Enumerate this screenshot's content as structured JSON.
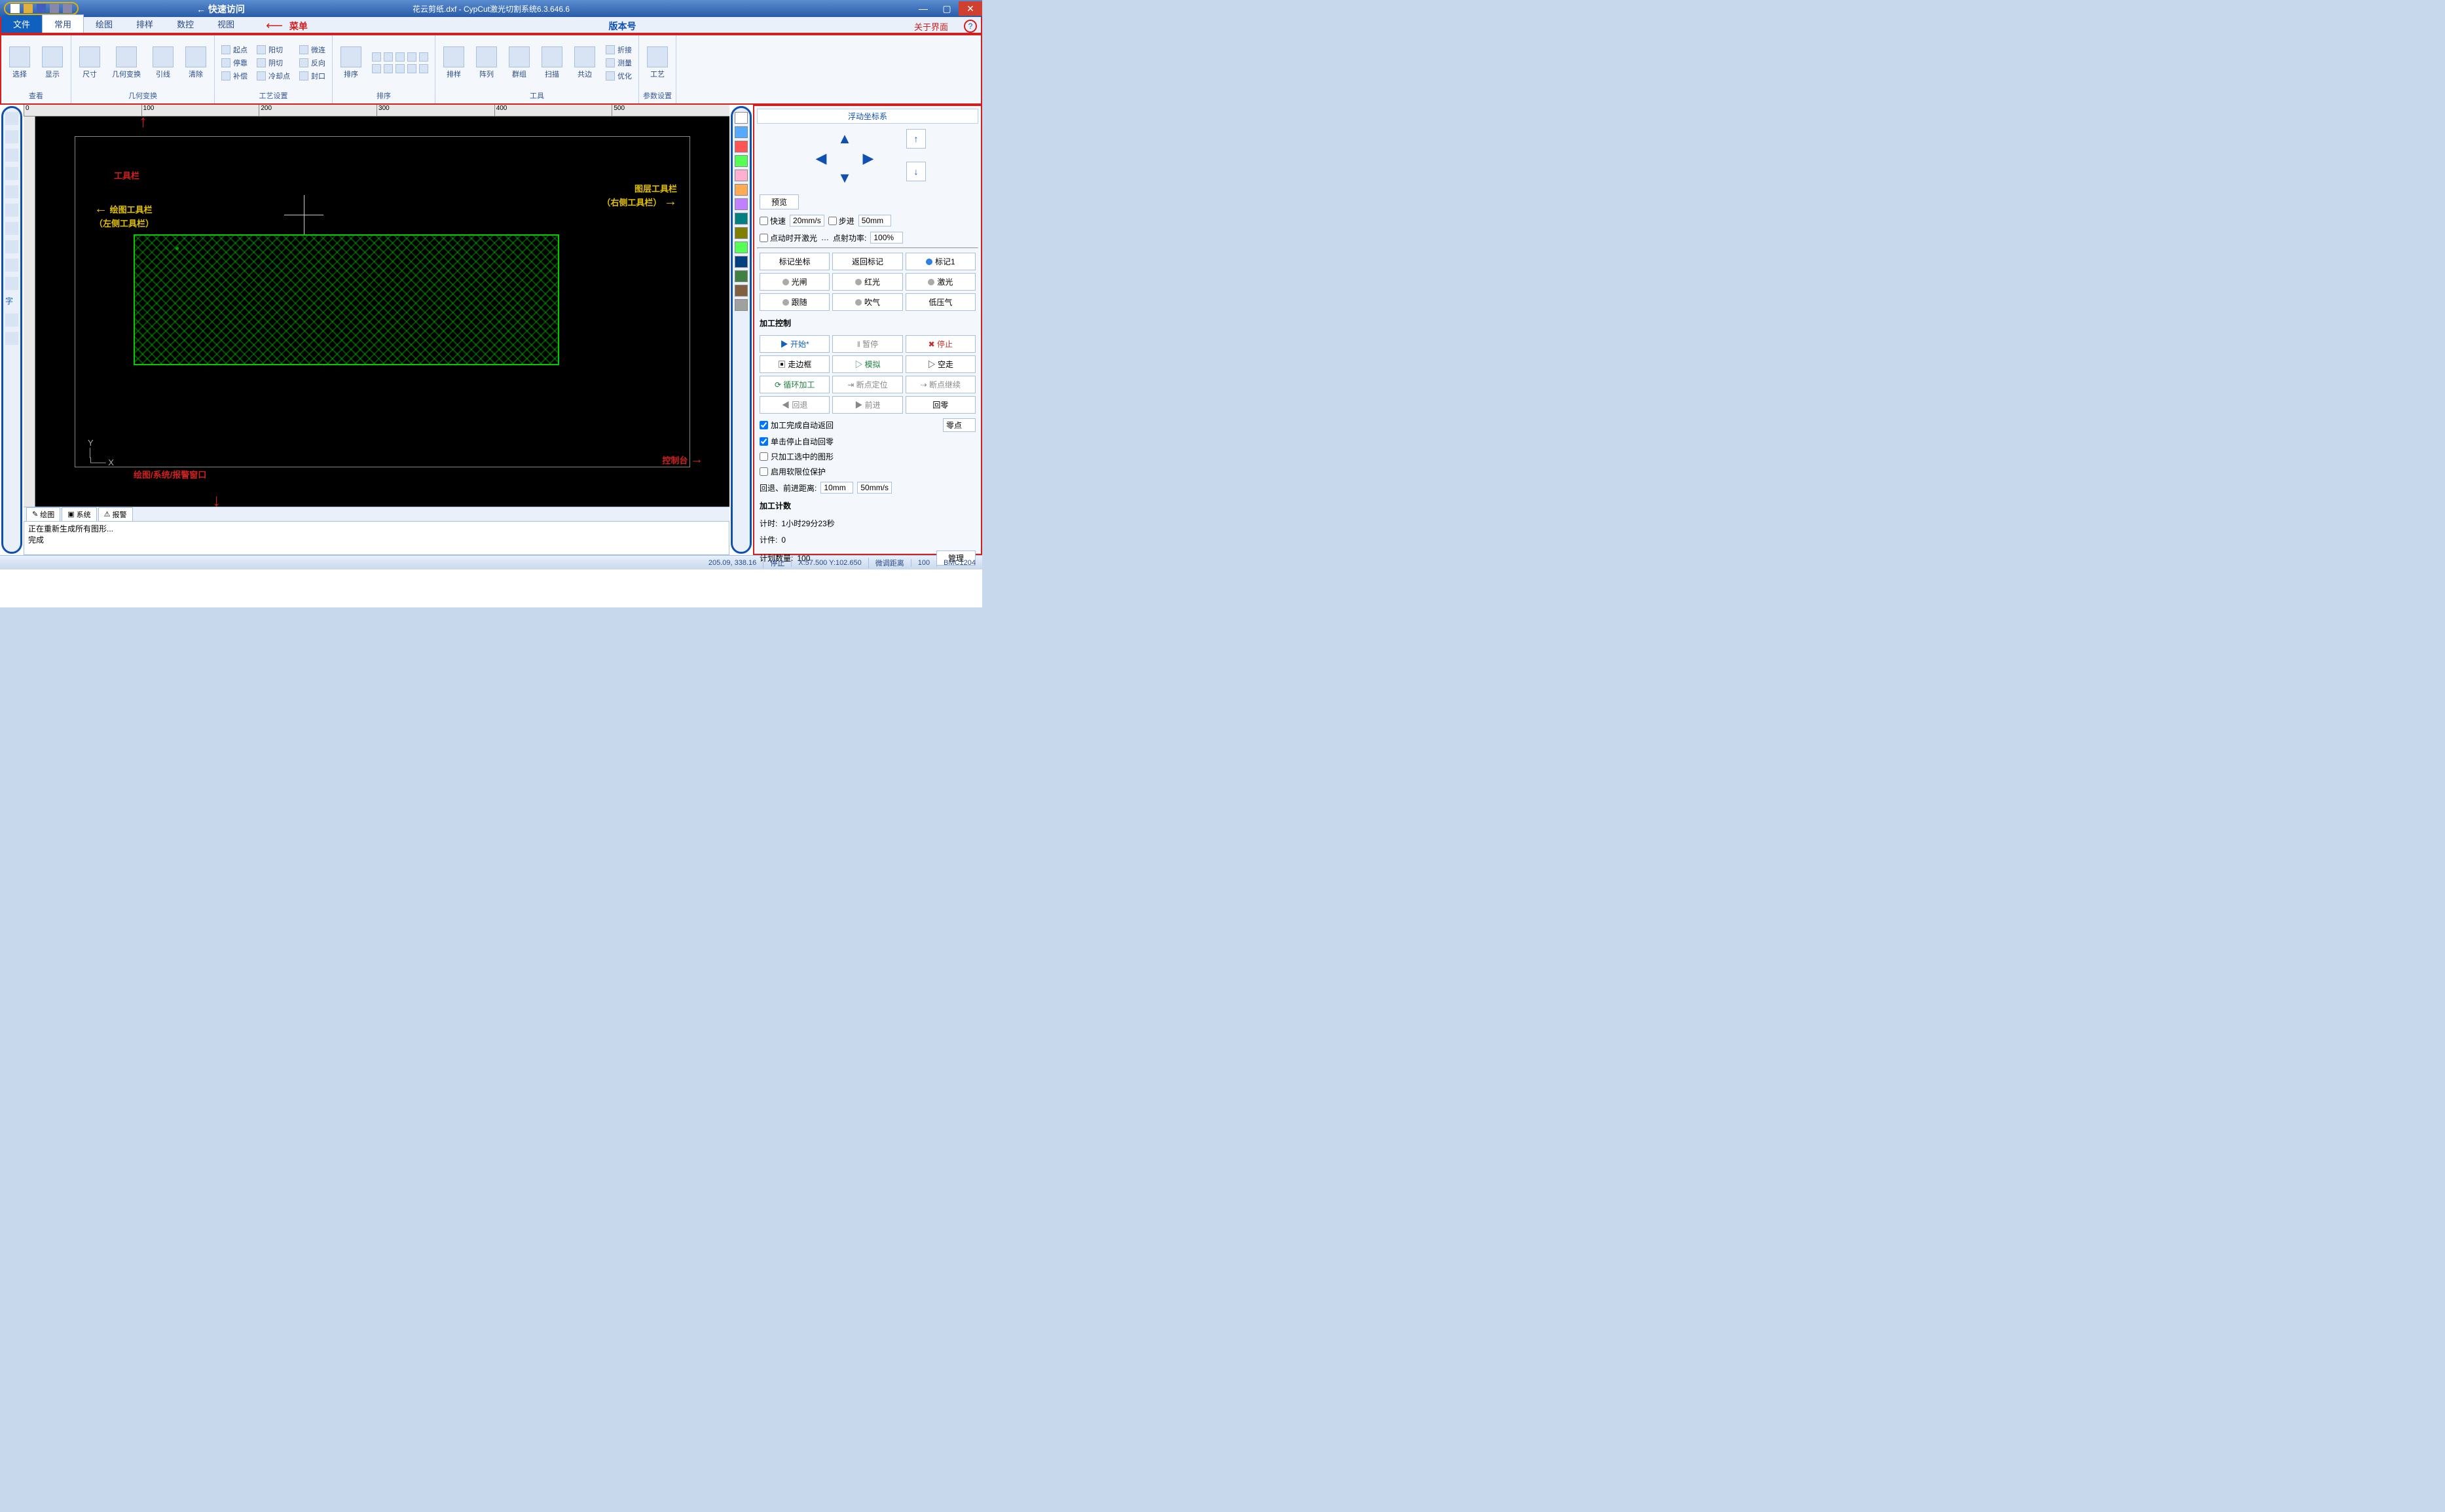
{
  "titlebar": {
    "quick_access_label": "快速访问",
    "title": "花云剪纸.dxf - CypCut激光切割系统6.3.646.6",
    "min": "—",
    "max": "▢",
    "close": "✕"
  },
  "menubar": {
    "file": "文件",
    "tabs": [
      "常用",
      "绘图",
      "排样",
      "数控",
      "视图"
    ],
    "menu_label": "菜单",
    "version_label": "版本号",
    "about_label": "关于界面",
    "help": "?"
  },
  "ribbon": {
    "groups": [
      {
        "label": "查看",
        "big": [
          {
            "t": "选择"
          },
          {
            "t": "显示"
          }
        ]
      },
      {
        "label": "几何变换",
        "big": [
          {
            "t": "尺寸"
          },
          {
            "t": "几何变换"
          },
          {
            "t": "引线"
          },
          {
            "t": "清除"
          }
        ]
      },
      {
        "label": "工艺设置",
        "small": [
          [
            "起点",
            "阳切",
            "微连"
          ],
          [
            "停靠",
            "阴切",
            "反向"
          ],
          [
            "补偿",
            "冷却点",
            "封口"
          ]
        ]
      },
      {
        "label": "排序",
        "big": [
          {
            "t": "排序"
          }
        ],
        "small": [
          [
            "",
            "",
            "",
            "",
            ""
          ],
          [
            "",
            "",
            "",
            "",
            ""
          ]
        ]
      },
      {
        "label": "工具",
        "big": [
          {
            "t": "排样"
          },
          {
            "t": "阵列"
          },
          {
            "t": "群组"
          },
          {
            "t": "扫描"
          },
          {
            "t": "共边"
          }
        ],
        "small": [
          [
            "折接"
          ],
          [
            "测量"
          ],
          [
            "优化"
          ]
        ]
      },
      {
        "label": "参数设置",
        "big": [
          {
            "t": "工艺"
          }
        ]
      }
    ]
  },
  "ruler": {
    "marks": [
      "0",
      "100",
      "200",
      "300",
      "400",
      "500"
    ]
  },
  "annotations": {
    "toolbar": "工具栏",
    "draw_toolbar": "绘图工具栏\n（左侧工具栏）",
    "layer_toolbar": "图层工具栏\n（右侧工具栏）",
    "drawing_window": "绘图/系统/报警窗口",
    "control_panel": "控制台"
  },
  "layer_colors": [
    "#ffffff",
    "#55aaff",
    "#ff5555",
    "#55ff55",
    "#ffb0d0",
    "#ffaa55",
    "#c080ff",
    "#008080",
    "#808000",
    "#55ff55",
    "#004080",
    "#408040",
    "#806040",
    "#a0a0a0"
  ],
  "right": {
    "coord_sys": "浮动坐标系",
    "preview": "预览",
    "fast": "快速",
    "fast_val": "20mm/s",
    "step": "步进",
    "step_val": "50mm",
    "laser_on_jog": "点动时开激光",
    "dot_power": "点射功率:",
    "dot_power_val": "100%",
    "row1": [
      "标记坐标",
      "返回标记",
      "标记1"
    ],
    "row2": [
      "光闸",
      "红光",
      "激光"
    ],
    "row3": [
      "跟随",
      "吹气",
      "低压气"
    ],
    "proc_ctrl": "加工控制",
    "ctrl": [
      [
        "▶ 开始*",
        "‖ 暂停",
        "✖ 停止"
      ],
      [
        "▣ 走边框",
        "▷ 模拟",
        "▷ 空走"
      ],
      [
        "⟳ 循环加工",
        "⇥ 断点定位",
        "⇢ 断点继续"
      ],
      [
        "◀ 回退",
        "▶ 前进",
        "回零"
      ]
    ],
    "chk1": "加工完成自动返回",
    "ret_pt": "零点",
    "chk2": "单击停止自动回零",
    "chk3": "只加工选中的图形",
    "chk4": "启用软限位保护",
    "back_fwd": "回退、前进距离:",
    "bf_v1": "10mm",
    "bf_v2": "50mm/s",
    "count_title": "加工计数",
    "time_lbl": "计时:",
    "time_val": "1小时29分23秒",
    "piece_lbl": "计件:",
    "piece_val": "0",
    "plan_lbl": "计划数量:",
    "plan_val": "100",
    "manage": "管理"
  },
  "bottom_tabs": [
    "绘图",
    "系统",
    "报警"
  ],
  "log": [
    "正在重新生成所有图形...",
    "完成"
  ],
  "status": {
    "coord": "205.09, 338.16",
    "state": "停止",
    "xy": "X:57.500 Y:102.650",
    "fine": "微调距离",
    "fine_val": "100",
    "board": "BMC1204"
  }
}
